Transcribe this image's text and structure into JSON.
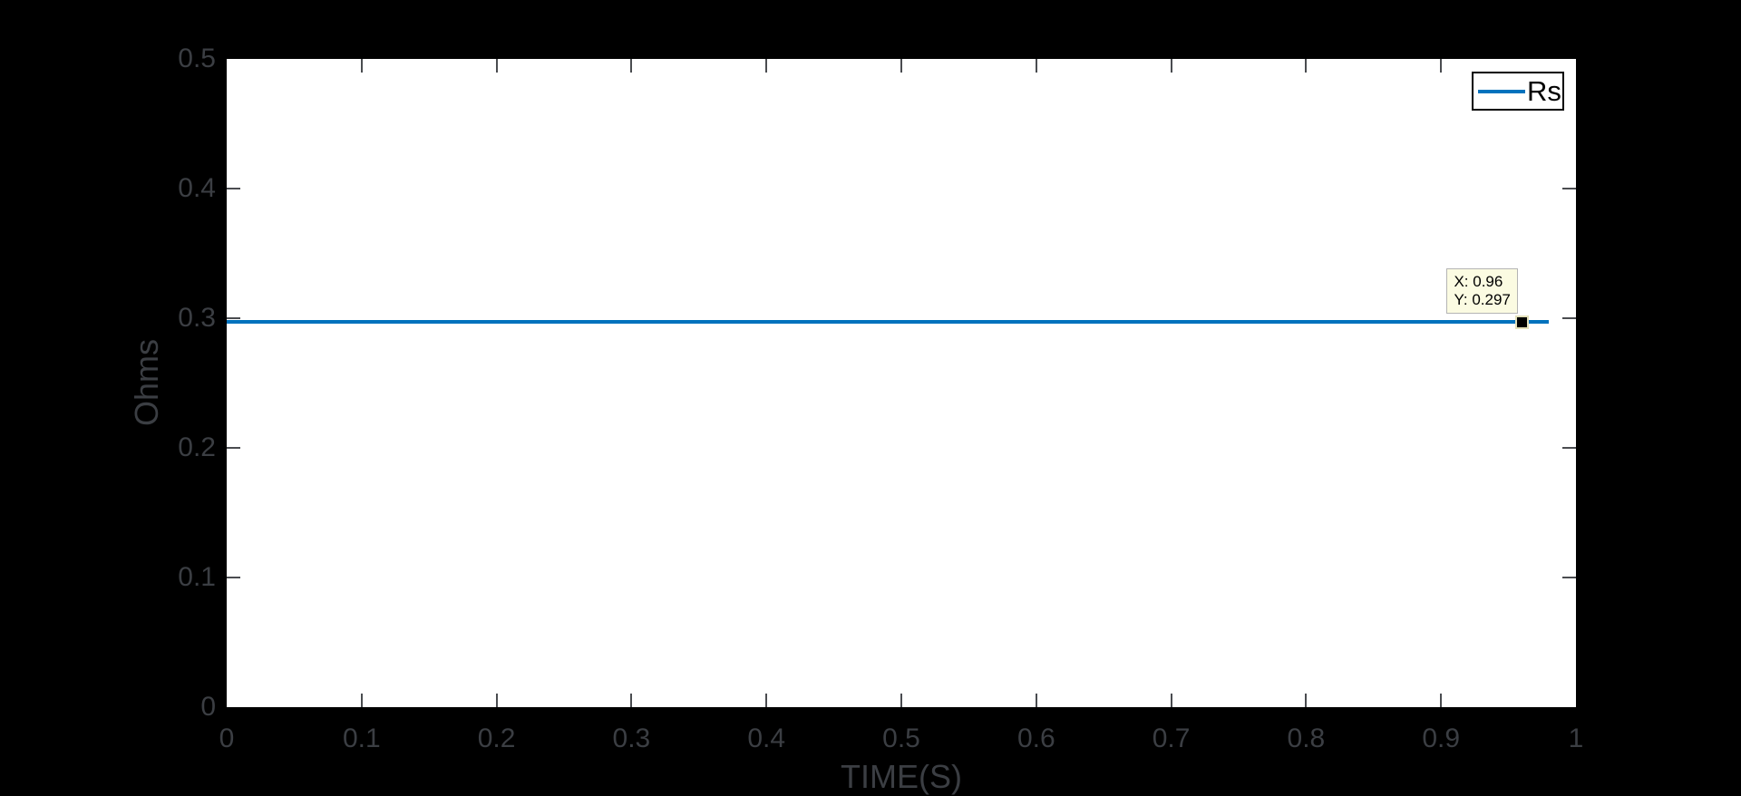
{
  "colors": {
    "figure_background": "#000000",
    "plot_background": "#ffffff",
    "line": "#0072BD",
    "tick_label": "#3b3e43",
    "datatip_background": "#fbfbe2"
  },
  "chart_data": {
    "type": "line",
    "title": "",
    "xlabel": "TIME(S)",
    "ylabel": "Ohms",
    "xlim": [
      0,
      1
    ],
    "ylim": [
      0,
      0.5
    ],
    "x_ticks": [
      "0",
      "0.1",
      "0.2",
      "0.3",
      "0.4",
      "0.5",
      "0.6",
      "0.7",
      "0.8",
      "0.9",
      "1"
    ],
    "y_ticks": [
      "0",
      "0.1",
      "0.2",
      "0.3",
      "0.4",
      "0.5"
    ],
    "grid": false,
    "legend_position": "top-right",
    "series": [
      {
        "name": "Rs",
        "color": "#0072BD",
        "x": [
          0,
          0.98
        ],
        "y": [
          0.297,
          0.297
        ],
        "description": "constant horizontal line at 0.297 Ohms from t=0 to t=0.98"
      }
    ],
    "datatip_point": {
      "x": 0.96,
      "y": 0.297
    }
  },
  "legend": {
    "items": [
      {
        "label": "Rs",
        "color": "#0072BD"
      }
    ]
  },
  "datatip": {
    "line1": "X: 0.96",
    "line2": "Y: 0.297"
  }
}
